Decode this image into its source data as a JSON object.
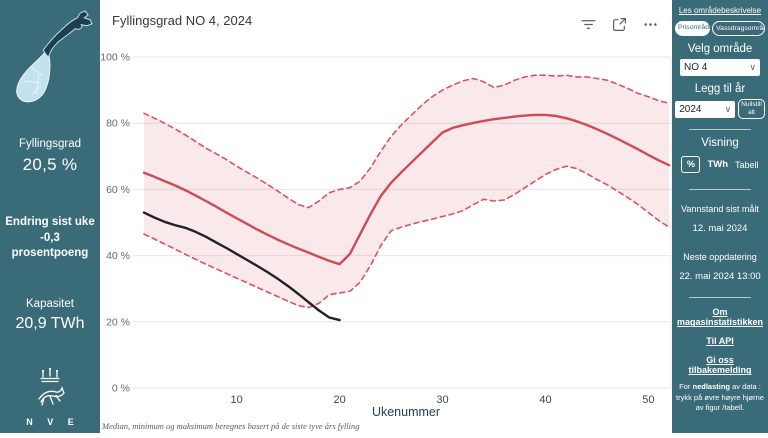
{
  "colors": {
    "panel_teal": "#3a6b78",
    "map_dark": "#1d3f4f",
    "map_light": "#c2e2ee",
    "median_red": "#cf4a57",
    "band_edge_red": "#e04f60",
    "band_fill": "rgba(216,86,100,0.13)",
    "line_black": "#222222"
  },
  "left_panel": {
    "fyllingsgrad_label": "Fyllingsgrad",
    "fyllingsgrad_value": "20,5 %",
    "endring_label": "Endring sist uke",
    "endring_value": "-0,3",
    "endring_unit": "prosentpoeng",
    "kapasitet_label": "Kapasitet",
    "kapasitet_value": "20,9 TWh",
    "logo_text": "N V E"
  },
  "header": {
    "title": "Fyllingsgrad NO 4, 2024",
    "more_options": "..."
  },
  "right_panel": {
    "area_description_link": "Les områdebeskrivelse",
    "toggle_prisomrader": "Prisområder",
    "toggle_vassdragsomrader": "Vassdragsområder",
    "velg_omrade_label": "Velg område",
    "omrade_value": "NO 4",
    "legg_til_ar_label": "Legg til år",
    "ar_value": "2024",
    "nullstill_line1": "Nullstill",
    "nullstill_line2": "alt",
    "visning_label": "Visning",
    "visning_percent": "%",
    "visning_twh": "TWh",
    "visning_tabell": "Tabell",
    "vannstand_label": "Vannstand sist målt",
    "vannstand_value": "12. mai 2024",
    "neste_label": "Neste oppdatering",
    "neste_value": "22. mai 2024 13:00",
    "om_link": "Om magasinstatistikken",
    "api_link": "Til API",
    "feedback_link": "Gi oss tilbakemelding",
    "download_hint_pre": "For ",
    "download_hint_bold": "nedlasting",
    "download_hint_post": " av data : trykk på øvre høyre hjørne av figur /tabell."
  },
  "chart_data": {
    "type": "line",
    "title": "Fyllingsgrad NO 4, 2024",
    "xlabel": "Ukenummer",
    "footnote": "Median, minimum og maksimum beregnes basert på de siste tyve års fylling",
    "xlim": [
      1,
      52
    ],
    "ylim": [
      0,
      100
    ],
    "x_ticks": [
      10,
      20,
      30,
      40,
      50
    ],
    "y_ticks": [
      0,
      20,
      40,
      60,
      80,
      100
    ],
    "grid": true,
    "band_fill": "rgba(216,86,100,0.13)",
    "x": [
      1,
      2,
      3,
      4,
      5,
      6,
      7,
      8,
      9,
      10,
      11,
      12,
      13,
      14,
      15,
      16,
      17,
      18,
      19,
      20,
      21,
      22,
      23,
      24,
      25,
      26,
      27,
      28,
      29,
      30,
      31,
      32,
      33,
      34,
      35,
      36,
      37,
      38,
      39,
      40,
      41,
      42,
      43,
      44,
      45,
      46,
      47,
      48,
      49,
      50,
      51,
      52
    ],
    "series": [
      {
        "name": "Maksimum",
        "style": "dashed",
        "color": "#e04f60",
        "width": 1.6,
        "values": [
          83,
          81.5,
          80,
          78.3,
          76.5,
          74.5,
          72.5,
          70.8,
          69,
          67,
          65.2,
          63.4,
          61.5,
          59.5,
          57.4,
          55.4,
          54.5,
          56.5,
          59,
          60,
          60.5,
          62.5,
          66.5,
          71.5,
          76,
          79.5,
          82.5,
          85.5,
          88,
          90,
          91.5,
          92.8,
          93.5,
          92.5,
          90.8,
          91.5,
          93,
          94,
          94.5,
          94.5,
          94.2,
          94.5,
          94,
          94,
          93.5,
          93,
          91.8,
          90.5,
          89,
          88,
          86.8,
          86
        ]
      },
      {
        "name": "Minimum",
        "style": "dashed",
        "color": "#e04f60",
        "width": 1.6,
        "values": [
          46.5,
          45,
          43.5,
          42,
          40.4,
          38.9,
          37.4,
          36,
          34.6,
          33.2,
          31.8,
          30.4,
          29,
          27.6,
          26.2,
          24.9,
          24.3,
          25.6,
          28.2,
          28.7,
          29.2,
          32,
          37,
          43,
          47.5,
          48.6,
          49.5,
          50.3,
          51,
          51.8,
          52.6,
          53.6,
          55.4,
          57,
          56.5,
          56.8,
          58.5,
          60.5,
          62.5,
          64.5,
          66,
          67,
          66.3,
          64.8,
          63,
          61.4,
          59.5,
          57.5,
          55.4,
          53,
          50.6,
          48.6
        ]
      },
      {
        "name": "Median",
        "style": "solid",
        "color": "#cf4a57",
        "width": 2.4,
        "values": [
          65,
          63.8,
          62.5,
          61.2,
          59.8,
          58.2,
          56.5,
          54.8,
          53,
          51.3,
          49.6,
          47.9,
          46.3,
          44.8,
          43.4,
          42.1,
          40.9,
          39.6,
          38.4,
          37.4,
          40.5,
          46.5,
          52.5,
          58,
          62,
          65.2,
          68.2,
          71.2,
          74.2,
          77.2,
          78.6,
          79.4,
          80.1,
          80.7,
          81.2,
          81.6,
          82,
          82.3,
          82.5,
          82.5,
          82.2,
          81.5,
          80.6,
          79.5,
          78.2,
          76.8,
          75.3,
          73.7,
          72.1,
          70.4,
          68.8,
          67.3
        ]
      },
      {
        "name": "2024",
        "style": "solid",
        "color": "#222222",
        "width": 2.4,
        "x": [
          1,
          2,
          3,
          4,
          5,
          6,
          7,
          8,
          9,
          10,
          11,
          12,
          13,
          14,
          15,
          16,
          17,
          18,
          19,
          20
        ],
        "values": [
          53,
          51.5,
          50.2,
          49.2,
          48.4,
          47.2,
          45.7,
          44,
          42.3,
          40.5,
          38.7,
          36.9,
          35,
          33,
          30.8,
          28.4,
          25.9,
          23.4,
          21.3,
          20.5
        ]
      }
    ]
  }
}
